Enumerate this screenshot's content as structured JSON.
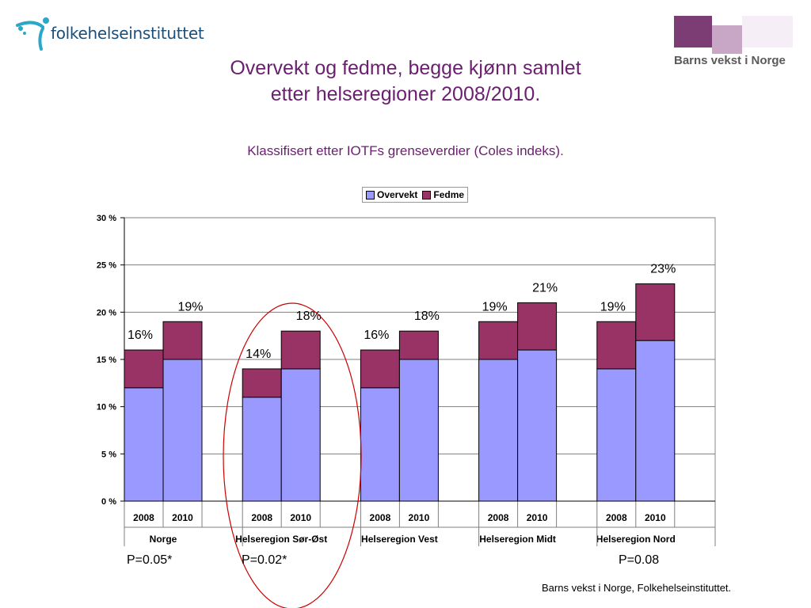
{
  "header": {
    "fhi_logo_text": "folkehelseinstituttet",
    "bvn_logo_text": "Barns vekst i Norge",
    "title_line1": "Overvekt og fedme, begge kjønn samlet",
    "title_line2": "etter helseregioner 2008/2010.",
    "subtitle": "Klassifisert etter IOTFs grenseverdier (Coles indeks)."
  },
  "colors": {
    "overvekt": "#9999ff",
    "fedme": "#993366",
    "title": "#6a1f6f",
    "highlight_ellipse": "#cc0000"
  },
  "chart_data": {
    "type": "bar",
    "stacked": true,
    "ylim": [
      0,
      30
    ],
    "yticks": [
      0,
      5,
      10,
      15,
      20,
      25,
      30
    ],
    "ytick_labels": [
      "0 %",
      "5 %",
      "10 %",
      "15 %",
      "20 %",
      "25 %",
      "30 %"
    ],
    "legend": {
      "position": "top-center",
      "entries": [
        "Overvekt",
        "Fedme"
      ]
    },
    "groups": [
      {
        "label": "Norge",
        "years": [
          "2008",
          "2010"
        ],
        "overvekt": [
          12,
          15
        ],
        "fedme": [
          4,
          4
        ],
        "totals": [
          "16%",
          "19%"
        ]
      },
      {
        "label": "Helseregion Sør-Øst",
        "years": [
          "2008",
          "2010"
        ],
        "overvekt": [
          11,
          14
        ],
        "fedme": [
          3,
          4
        ],
        "totals": [
          "14%",
          "18%"
        ]
      },
      {
        "label": "Helseregion Vest",
        "years": [
          "2008",
          "2010"
        ],
        "overvekt": [
          12,
          15
        ],
        "fedme": [
          4,
          3
        ],
        "totals": [
          "16%",
          "18%"
        ]
      },
      {
        "label": "Helseregion Midt",
        "years": [
          "2008",
          "2010"
        ],
        "overvekt": [
          15,
          16
        ],
        "fedme": [
          4,
          5
        ],
        "totals": [
          "19%",
          "21%"
        ]
      },
      {
        "label": "Helseregion Nord",
        "years": [
          "2008",
          "2010"
        ],
        "overvekt": [
          14,
          17
        ],
        "fedme": [
          5,
          6
        ],
        "totals": [
          "19%",
          "23%"
        ]
      }
    ],
    "p_values": [
      {
        "text": "P=0.05*"
      },
      {
        "text": "P=0.02*"
      },
      {
        "text": "P=0.08"
      }
    ]
  },
  "footer": {
    "source": "Barns vekst i Norge, Folkehelseinstituttet."
  }
}
